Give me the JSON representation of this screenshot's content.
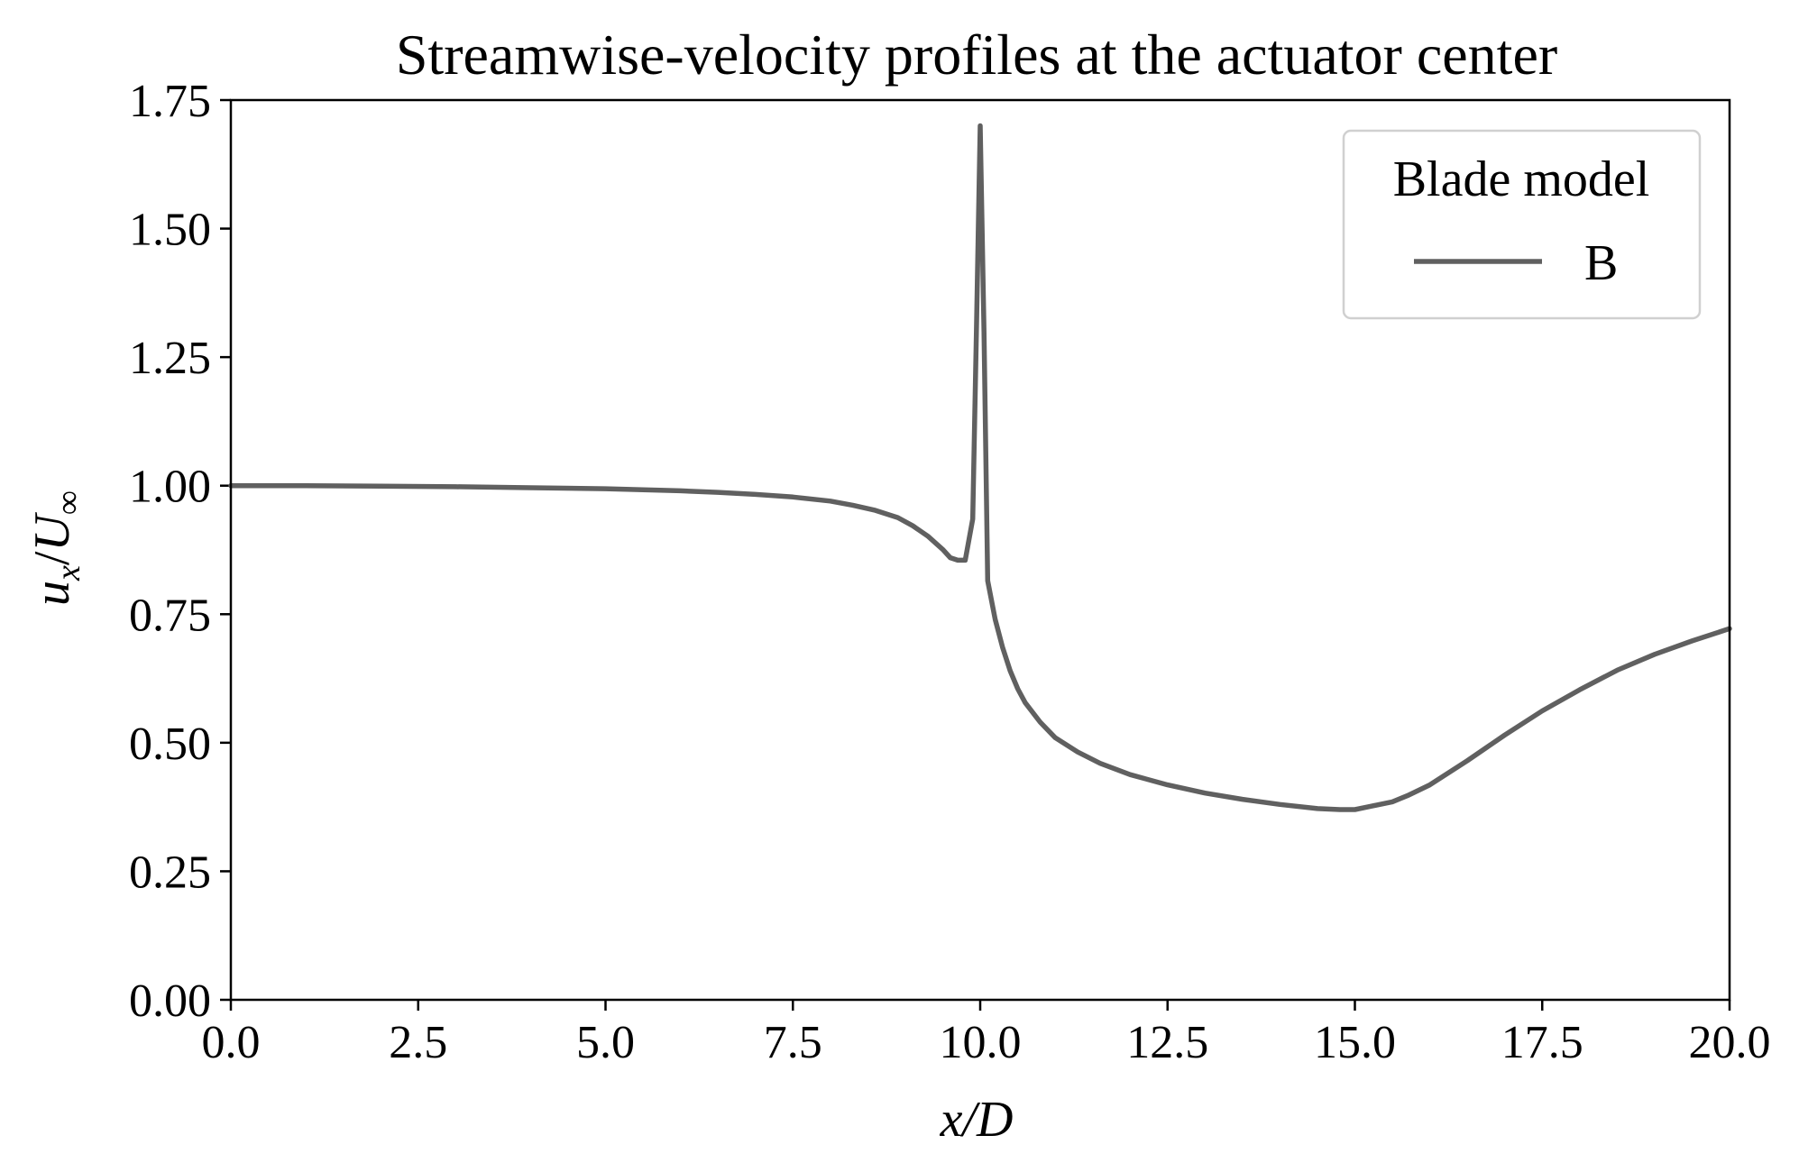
{
  "chart_data": {
    "type": "line",
    "title": "Streamwise-velocity profiles at the actuator center",
    "xlabel": "x/D",
    "ylabel_main": "u",
    "ylabel_main_sub": "x",
    "ylabel_slash": "/",
    "ylabel_denom": "U",
    "ylabel_denom_sub": "∞",
    "xlim": [
      0,
      20
    ],
    "ylim": [
      0,
      1.75
    ],
    "x_ticks": [
      0,
      2.5,
      5,
      7.5,
      10,
      12.5,
      15,
      17.5,
      20
    ],
    "x_tick_labels": [
      "0.0",
      "2.5",
      "5.0",
      "7.5",
      "10.0",
      "12.5",
      "15.0",
      "17.5",
      "20.0"
    ],
    "y_ticks": [
      0,
      0.25,
      0.5,
      0.75,
      1.0,
      1.25,
      1.5,
      1.75
    ],
    "y_tick_labels": [
      "0.00",
      "0.25",
      "0.50",
      "0.75",
      "1.00",
      "1.25",
      "1.50",
      "1.75"
    ],
    "grid": false,
    "legend": {
      "title": "Blade model",
      "placement": "top-right"
    },
    "series": [
      {
        "name": "B",
        "color": "#606060",
        "x": [
          0,
          1,
          2,
          3,
          4,
          5,
          6,
          6.5,
          7,
          7.5,
          8,
          8.3,
          8.6,
          8.9,
          9.1,
          9.3,
          9.5,
          9.6,
          9.7,
          9.8,
          9.9,
          9.95,
          10.0,
          10.05,
          10.1,
          10.2,
          10.3,
          10.4,
          10.5,
          10.6,
          10.8,
          11.0,
          11.3,
          11.6,
          12.0,
          12.5,
          13.0,
          13.5,
          14.0,
          14.5,
          14.8,
          15.0,
          15.2,
          15.5,
          15.7,
          16.0,
          16.5,
          17.0,
          17.5,
          18.0,
          18.5,
          19.0,
          19.5,
          20.0
        ],
        "y": [
          1.0,
          1.0,
          0.999,
          0.998,
          0.996,
          0.994,
          0.99,
          0.987,
          0.983,
          0.978,
          0.97,
          0.962,
          0.952,
          0.938,
          0.922,
          0.902,
          0.876,
          0.86,
          0.855,
          0.855,
          0.935,
          1.3,
          1.7,
          1.3,
          0.815,
          0.74,
          0.685,
          0.64,
          0.605,
          0.578,
          0.54,
          0.51,
          0.482,
          0.46,
          0.438,
          0.418,
          0.402,
          0.39,
          0.38,
          0.372,
          0.37,
          0.37,
          0.376,
          0.385,
          0.397,
          0.418,
          0.465,
          0.515,
          0.562,
          0.603,
          0.641,
          0.672,
          0.698,
          0.722
        ]
      }
    ]
  }
}
